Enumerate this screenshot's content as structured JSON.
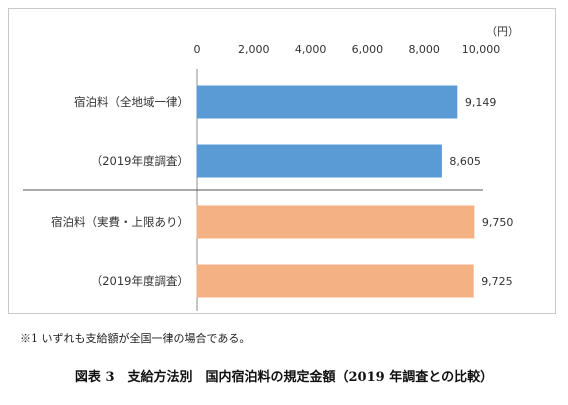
{
  "chart_data": {
    "type": "bar",
    "orientation": "horizontal",
    "unit": "（円）",
    "categories": [
      "宿泊料（全地域一律）",
      "（2019年度調査）",
      "宿泊料（実費・上限あり）",
      "（2019年度調査）"
    ],
    "values": [
      9149,
      8605,
      9750,
      9725
    ],
    "value_labels": [
      "9,149",
      "8,605",
      "9,750",
      "9,725"
    ],
    "bar_colors": [
      "#5b9bd5",
      "#5b9bd5",
      "#f4b183",
      "#f4b183"
    ],
    "xlim": [
      0,
      10000
    ],
    "ticks": [
      0,
      2000,
      4000,
      6000,
      8000,
      10000
    ],
    "tick_labels": [
      "0",
      "2,000",
      "4,000",
      "6,000",
      "8,000",
      "10,000"
    ],
    "axis_position": "top",
    "grid": false,
    "group_divider": true
  },
  "note": "※1 いずれも支給額が全国一律の場合である。",
  "caption": "図表 3　支給方法別　国内宿泊料の規定金額（2019 年調査との比較）"
}
